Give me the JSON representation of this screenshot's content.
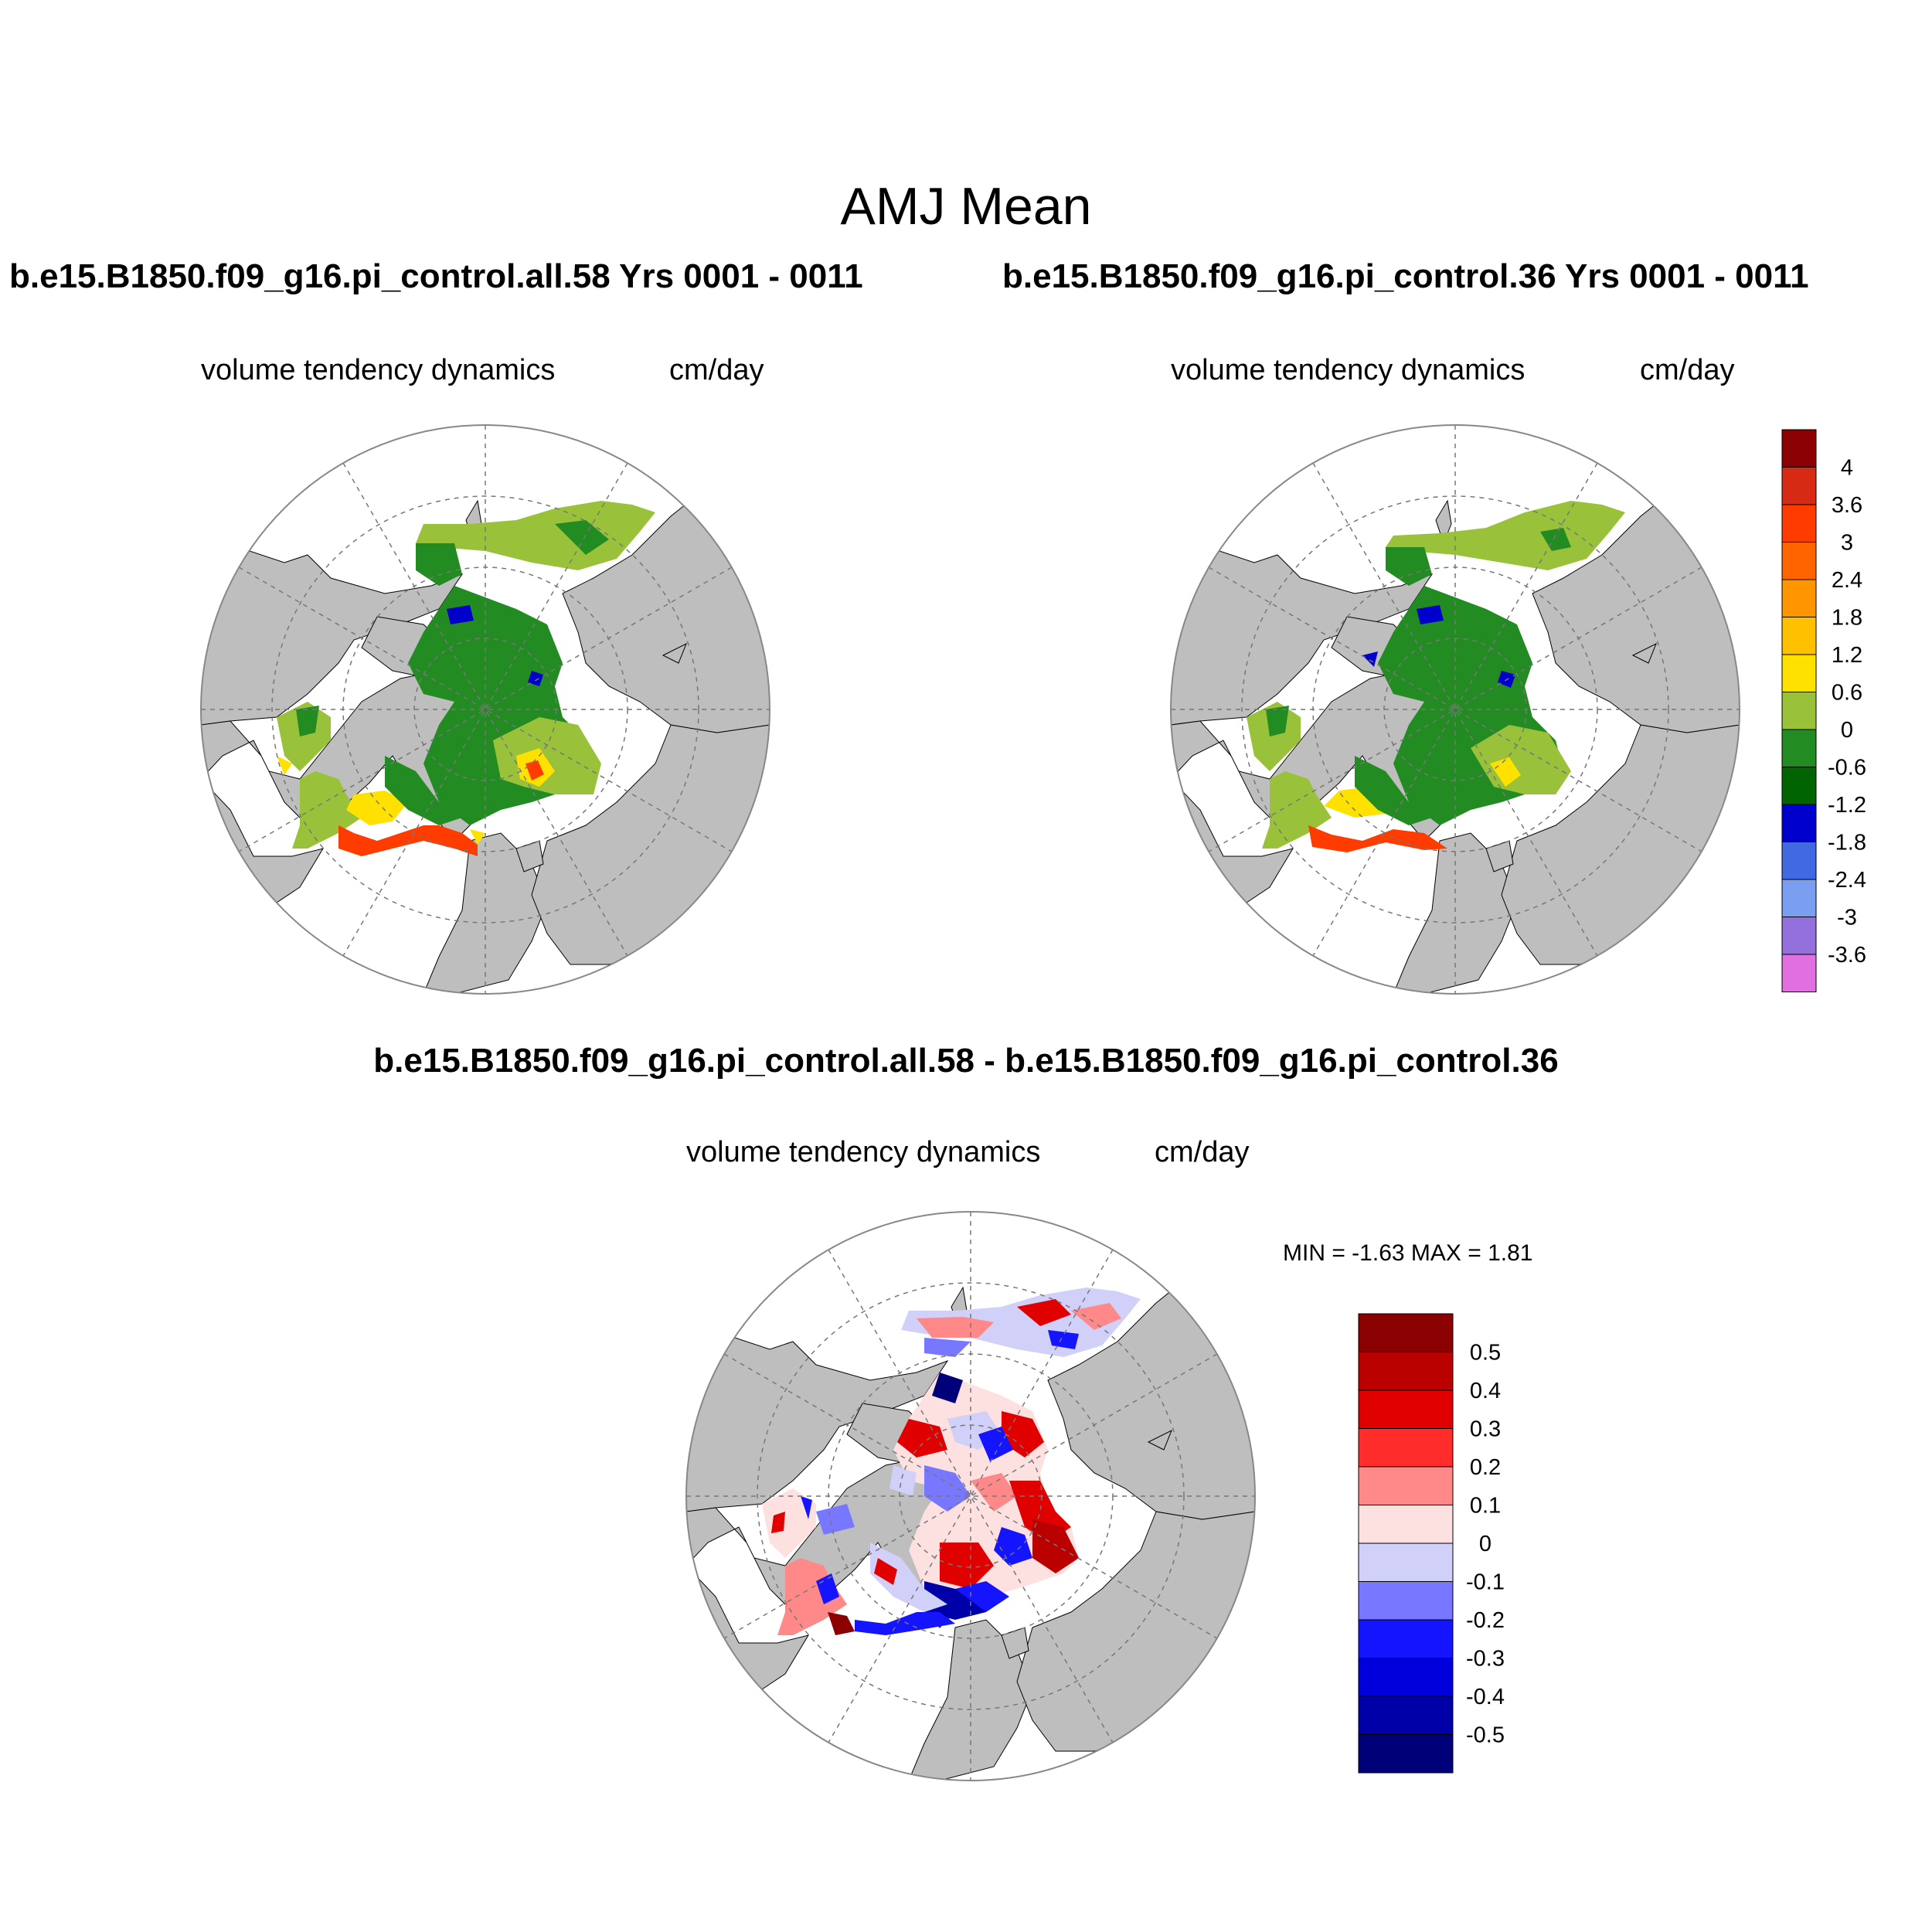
{
  "figure": {
    "title": "AMJ Mean",
    "panel_left": {
      "case_title": "b.e15.B1850.f09_g16.pi_control.all.58  Yrs 0001 - 0011",
      "variable": "volume tendency dynamics",
      "units": "cm/day"
    },
    "panel_right": {
      "case_title": "b.e15.B1850.f09_g16.pi_control.36  Yrs 0001 - 0011",
      "variable": "volume tendency dynamics",
      "units": "cm/day"
    },
    "panel_diff": {
      "case_title": "b.e15.B1850.f09_g16.pi_control.all.58 - b.e15.B1850.f09_g16.pi_control.36",
      "variable": "volume tendency dynamics",
      "units": "cm/day",
      "minmax": "MIN =  -1.63 MAX =   1.81"
    }
  },
  "colorbar_main": {
    "labels": [
      "4",
      "3.6",
      "3",
      "2.4",
      "1.8",
      "1.2",
      "0.6",
      "0",
      "-0.6",
      "-1.2",
      "-1.8",
      "-2.4",
      "-3",
      "-3.6"
    ],
    "colors": [
      "#8b0000",
      "#d62a14",
      "#ff3c00",
      "#ff6400",
      "#ff9600",
      "#ffc000",
      "#ffe100",
      "#99c23a",
      "#228b22",
      "#006400",
      "#0000cc",
      "#4169e1",
      "#7b9ff0",
      "#9370db",
      "#e070e0"
    ]
  },
  "colorbar_diff": {
    "labels": [
      "0.5",
      "0.4",
      "0.3",
      "0.2",
      "0.1",
      "0",
      "-0.1",
      "-0.2",
      "-0.3",
      "-0.4",
      "-0.5"
    ],
    "colors": [
      "#8b0000",
      "#bb0000",
      "#e00000",
      "#ff2c2c",
      "#ff8888",
      "#fde0e0",
      "#d0d0f8",
      "#7777ff",
      "#1414ff",
      "#0000dd",
      "#0000a8",
      "#000078"
    ]
  },
  "map_colors": {
    "land": "#bebebe",
    "ocean": "#ffffff",
    "ice_green": "#228b22",
    "ice_light": "#99c23a",
    "ice_yellow": "#ffe100",
    "ice_red": "#ff3c00",
    "diff_pos": "#e00000",
    "diff_neg": "#1414ff",
    "diff_pale_pos": "#fde0e0",
    "diff_pale_neg": "#d0d0f8"
  }
}
